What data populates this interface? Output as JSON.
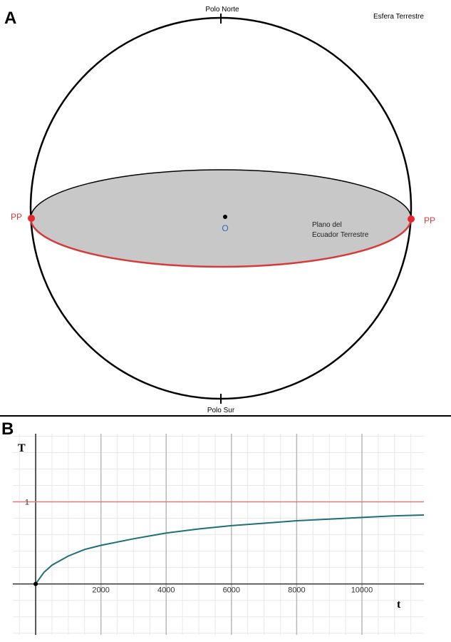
{
  "panel_a": {
    "label": "A",
    "title": "Esfera Terrestre",
    "north_pole": "Polo Norte",
    "south_pole": "Polo Sur",
    "center": "O",
    "left_point": "PP",
    "right_point": "PP",
    "plane_label_line1": "Plano del",
    "plane_label_line2": "Ecuador Terrestre",
    "colors": {
      "sphere": "#000000",
      "plane_fill": "#c8c8c8",
      "equator_front": "#d63a3a",
      "points": "#e8242c",
      "center_label": "#2a6fb0"
    }
  },
  "panel_b": {
    "label": "B",
    "y_axis_label": "T",
    "x_axis_label": "t",
    "asymptote_label": "1",
    "x_ticks": [
      "2000",
      "4000",
      "6000",
      "8000",
      "10000"
    ],
    "colors": {
      "curve": "#1f6f78",
      "asymptote": "#e07a7a",
      "grid": "#e6e6e6",
      "major_grid": "#b0b0b0"
    }
  },
  "chart_data": {
    "type": "line",
    "title": "",
    "xlabel": "t",
    "ylabel": "T",
    "xlim": [
      -700,
      11900
    ],
    "ylim": [
      -0.62,
      1.83
    ],
    "x_ticks": [
      2000,
      4000,
      6000,
      8000,
      10000
    ],
    "y_ticks": [
      1
    ],
    "grid": true,
    "series": [
      {
        "x": [
          0,
          250,
          500,
          1000,
          1500,
          2000,
          3000,
          4000,
          5000,
          6000,
          7000,
          8000,
          9000,
          10000,
          11000,
          11900
        ],
        "values": [
          0,
          0.14,
          0.23,
          0.34,
          0.42,
          0.47,
          0.55,
          0.62,
          0.67,
          0.71,
          0.74,
          0.77,
          0.79,
          0.81,
          0.83,
          0.84
        ]
      }
    ],
    "reference_lines": [
      {
        "axis": "y",
        "value": 1
      }
    ],
    "points": [
      {
        "x": 0,
        "y": 0
      }
    ]
  }
}
